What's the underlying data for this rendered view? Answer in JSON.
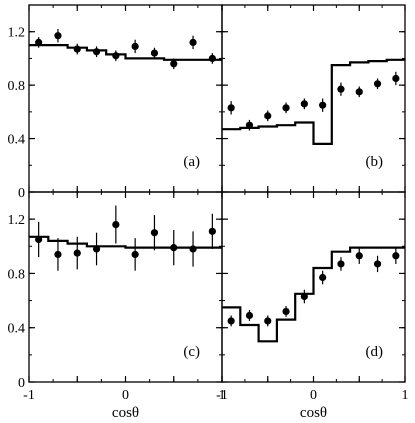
{
  "chart_data": [
    {
      "type": "scatter",
      "panel_label": "(a)",
      "xlim": [
        -1,
        1
      ],
      "ylim": [
        0,
        1.4
      ],
      "yticks": [
        0,
        0.4,
        0.8,
        1.2
      ],
      "points": {
        "x": [
          -0.9,
          -0.7,
          -0.5,
          -0.3,
          -0.1,
          0.1,
          0.3,
          0.5,
          0.7,
          0.9
        ],
        "y": [
          1.12,
          1.17,
          1.07,
          1.05,
          1.02,
          1.09,
          1.04,
          0.96,
          1.12,
          1.0
        ],
        "err": [
          0.04,
          0.05,
          0.04,
          0.04,
          0.04,
          0.05,
          0.04,
          0.04,
          0.05,
          0.04
        ]
      },
      "histogram": {
        "edges": [
          -1,
          -0.8,
          -0.6,
          -0.4,
          -0.2,
          0,
          0.2,
          0.4,
          0.6,
          0.8,
          1
        ],
        "values": [
          1.1,
          1.1,
          1.08,
          1.06,
          1.03,
          1.0,
          1.0,
          0.99,
          0.99,
          0.99
        ]
      }
    },
    {
      "type": "scatter",
      "panel_label": "(b)",
      "xlim": [
        -1,
        1
      ],
      "ylim": [
        0,
        1.4
      ],
      "yticks": [
        0,
        0.4,
        0.8,
        1.2
      ],
      "points": {
        "x": [
          -0.9,
          -0.7,
          -0.5,
          -0.3,
          -0.1,
          0.1,
          0.3,
          0.5,
          0.7,
          0.9
        ],
        "y": [
          0.63,
          0.5,
          0.57,
          0.63,
          0.66,
          0.65,
          0.77,
          0.75,
          0.81,
          0.85
        ],
        "err": [
          0.05,
          0.04,
          0.04,
          0.04,
          0.04,
          0.05,
          0.05,
          0.04,
          0.04,
          0.05
        ]
      },
      "histogram": {
        "edges": [
          -1,
          -0.8,
          -0.6,
          -0.4,
          -0.2,
          0,
          0.2,
          0.4,
          0.6,
          0.8,
          1
        ],
        "values": [
          0.47,
          0.48,
          0.49,
          0.5,
          0.52,
          0.36,
          0.95,
          0.97,
          0.98,
          0.99
        ]
      }
    },
    {
      "type": "scatter",
      "panel_label": "(c)",
      "xlim": [
        -1,
        1
      ],
      "ylim": [
        0,
        1.4
      ],
      "yticks": [
        0,
        0.4,
        0.8,
        1.2
      ],
      "xticks": [
        -1,
        0,
        1
      ],
      "xlabel": "cosθ",
      "points": {
        "x": [
          -0.9,
          -0.7,
          -0.5,
          -0.3,
          -0.1,
          0.1,
          0.3,
          0.5,
          0.7,
          0.9
        ],
        "y": [
          1.05,
          0.94,
          0.95,
          0.98,
          1.16,
          0.94,
          1.1,
          0.99,
          0.98,
          1.11
        ],
        "err": [
          0.13,
          0.12,
          0.12,
          0.12,
          0.14,
          0.12,
          0.13,
          0.13,
          0.13,
          0.13
        ]
      },
      "histogram": {
        "edges": [
          -1,
          -0.8,
          -0.6,
          -0.4,
          -0.2,
          0,
          0.2,
          0.4,
          0.6,
          0.8,
          1
        ],
        "values": [
          1.07,
          1.04,
          1.02,
          1.0,
          1.0,
          0.99,
          0.99,
          0.99,
          0.99,
          0.99
        ]
      }
    },
    {
      "type": "scatter",
      "panel_label": "(d)",
      "xlim": [
        -1,
        1
      ],
      "ylim": [
        0,
        1.4
      ],
      "yticks": [
        0,
        0.4,
        0.8,
        1.2
      ],
      "xticks": [
        -1,
        0,
        1
      ],
      "xlabel": "cosθ",
      "points": {
        "x": [
          -0.9,
          -0.7,
          -0.5,
          -0.3,
          -0.1,
          0.1,
          0.3,
          0.5,
          0.7,
          0.9
        ],
        "y": [
          0.45,
          0.49,
          0.45,
          0.52,
          0.63,
          0.77,
          0.87,
          0.93,
          0.87,
          0.93
        ],
        "err": [
          0.04,
          0.04,
          0.04,
          0.04,
          0.05,
          0.05,
          0.05,
          0.06,
          0.06,
          0.06
        ]
      },
      "histogram": {
        "edges": [
          -1,
          -0.8,
          -0.6,
          -0.4,
          -0.2,
          0,
          0.2,
          0.4,
          0.6,
          0.8,
          1
        ],
        "values": [
          0.55,
          0.42,
          0.3,
          0.46,
          0.65,
          0.84,
          0.96,
          0.99,
          0.99,
          0.99
        ]
      }
    }
  ],
  "style": {
    "line_color": "#000000",
    "marker_color": "#000000",
    "background": "#ffffff"
  }
}
